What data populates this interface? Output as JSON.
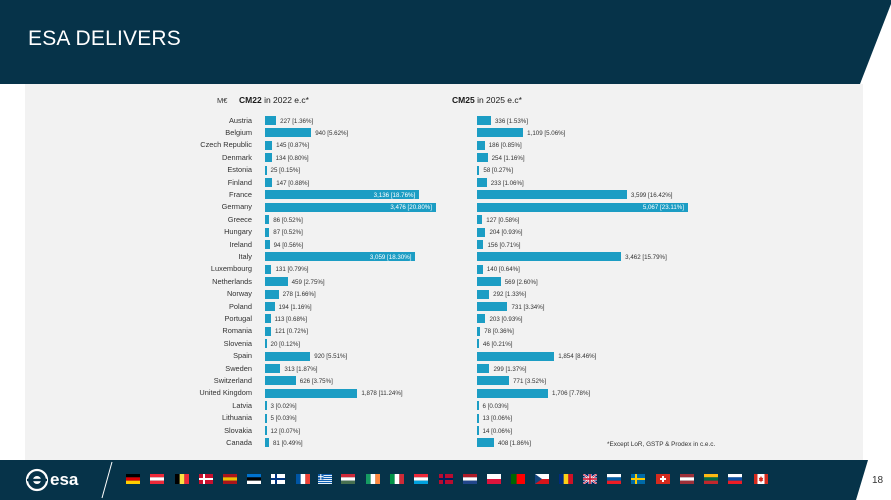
{
  "slide": {
    "title": "ESA DELIVERS",
    "page_number": "18"
  },
  "logo": {
    "text": "esa"
  },
  "footnote": "*Except LoR, GSTP & Prodex in c.e.c.",
  "colors": {
    "header": "#063349",
    "bar": "#1c9dc4",
    "panel": "#f2f2f2"
  },
  "chart_data": [
    {
      "type": "bar",
      "orientation": "horizontal",
      "units": "M€",
      "title_bold": "CM22",
      "title_rest": "in 2022 e.c*",
      "categories": [
        "Austria",
        "Belgium",
        "Czech Republic",
        "Denmark",
        "Estonia",
        "Finland",
        "France",
        "Germany",
        "Greece",
        "Hungary",
        "Ireland",
        "Italy",
        "Luxembourg",
        "Netherlands",
        "Norway",
        "Poland",
        "Portugal",
        "Romania",
        "Slovenia",
        "Spain",
        "Sweden",
        "Switzerland",
        "United Kingdom",
        "Latvia",
        "Lithuania",
        "Slovakia",
        "Canada"
      ],
      "values": [
        227,
        940,
        145,
        134,
        25,
        147,
        3136,
        3476,
        86,
        87,
        94,
        3059,
        131,
        459,
        278,
        194,
        113,
        121,
        20,
        920,
        313,
        626,
        1878,
        3,
        5,
        12,
        81
      ],
      "labels": [
        "227 [1.36%]",
        "940 [5.62%]",
        "145 [0.87%]",
        "134 [0.80%]",
        "25 [0.15%]",
        "147 [0.88%]",
        "3,136 [18.76%]",
        "3,476 [20.80%]",
        "86 [0.52%]",
        "87 [0.52%]",
        "94 [0.56%]",
        "3,059 [18.30%]",
        "131 [0.79%]",
        "459 [2.75%]",
        "278 [1.66%]",
        "194 [1.16%]",
        "113 [0.68%]",
        "121 [0.72%]",
        "20 [0.12%]",
        "920 [5.51%]",
        "313 [1.87%]",
        "626 [3.75%]",
        "1,878 [11.24%]",
        "3 [0.02%]",
        "5 [0.03%]",
        "12 [0.07%]",
        "81 [0.49%]"
      ],
      "inside_label_indices": [
        6,
        7,
        11
      ]
    },
    {
      "type": "bar",
      "orientation": "horizontal",
      "title_bold": "CM25",
      "title_rest": "in 2025 e.c*",
      "categories": [
        "Austria",
        "Belgium",
        "Czech Republic",
        "Denmark",
        "Estonia",
        "Finland",
        "France",
        "Germany",
        "Greece",
        "Hungary",
        "Ireland",
        "Italy",
        "Luxembourg",
        "Netherlands",
        "Norway",
        "Poland",
        "Portugal",
        "Romania",
        "Slovenia",
        "Spain",
        "Sweden",
        "Switzerland",
        "United Kingdom",
        "Latvia",
        "Lithuania",
        "Slovakia",
        "Canada"
      ],
      "values": [
        336,
        1109,
        186,
        254,
        58,
        233,
        3599,
        5067,
        127,
        204,
        156,
        3462,
        140,
        569,
        292,
        731,
        203,
        78,
        46,
        1854,
        299,
        771,
        1706,
        6,
        13,
        14,
        408
      ],
      "labels": [
        "336 [1.53%]",
        "1,109 [5.06%]",
        "186 [0.85%]",
        "254 [1.16%]",
        "58 [0.27%]",
        "233 [1.06%]",
        "3,599 [16.42%]",
        "5,067 [23.11%]",
        "127 [0.58%]",
        "204 [0.93%]",
        "156 [0.71%]",
        "3,462 [15.79%]",
        "140 [0.64%]",
        "569 [2.60%]",
        "292 [1.33%]",
        "731 [3.34%]",
        "203 [0.93%]",
        "78 [0.36%]",
        "46 [0.21%]",
        "1,854 [8.46%]",
        "299 [1.37%]",
        "771 [3.52%]",
        "1,706 [7.78%]",
        "6 [0.03%]",
        "13 [0.06%]",
        "14 [0.06%]",
        "408 [1.86%]"
      ],
      "inside_label_indices": [
        7
      ]
    }
  ],
  "flags": [
    "germany-flag",
    "austria-flag",
    "belgium-flag",
    "denmark-flag",
    "spain-flag",
    "estonia-flag",
    "finland-flag",
    "france-flag",
    "greece-flag",
    "hungary-flag",
    "ireland-flag",
    "italy-flag",
    "luxembourg-flag",
    "norway-flag",
    "netherlands-flag",
    "poland-flag",
    "portugal-flag",
    "czech-republic-flag",
    "romania-flag",
    "united-kingdom-flag",
    "slovenia-flag",
    "sweden-flag",
    "switzerland-flag",
    "latvia-flag",
    "lithuania-flag",
    "slovakia-flag",
    "canada-flag"
  ]
}
